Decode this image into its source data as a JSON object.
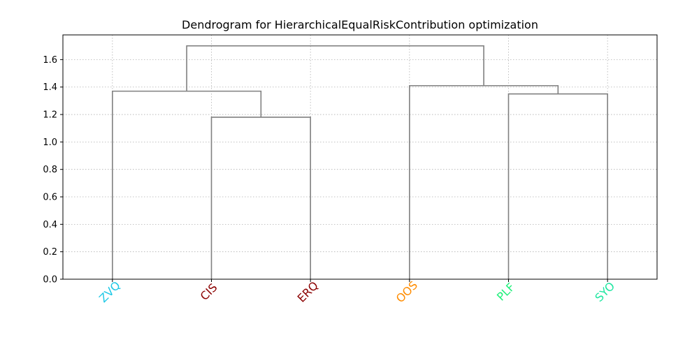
{
  "chart_data": {
    "type": "dendrogram",
    "title": "Dendrogram for HierarchicalEqualRiskContribution optimization",
    "xlabel": "",
    "ylabel": "",
    "ylim": [
      0,
      1.78
    ],
    "y_ticks": [
      0.0,
      0.2,
      0.4,
      0.6,
      0.8,
      1.0,
      1.2,
      1.4,
      1.6
    ],
    "y_tick_labels": [
      "0.0",
      "0.2",
      "0.4",
      "0.6",
      "0.8",
      "1.0",
      "1.2",
      "1.4",
      "1.6"
    ],
    "grid": true,
    "link_color": "#808080",
    "leaves": [
      {
        "label": "ZVQ",
        "color": "#1ec8e6"
      },
      {
        "label": "CIS",
        "color": "#8b0000"
      },
      {
        "label": "ERQ",
        "color": "#8b0000"
      },
      {
        "label": "OOS",
        "color": "#ff8c00"
      },
      {
        "label": "PLF",
        "color": "#1ef07a"
      },
      {
        "label": "SYO",
        "color": "#1ee6a0"
      }
    ],
    "merges": [
      {
        "left": "CIS",
        "right": "ERQ",
        "height": 1.18
      },
      {
        "left": "ZVQ",
        "right": "CIS+ERQ",
        "height": 1.37
      },
      {
        "left": "PLF",
        "right": "SYO",
        "height": 1.35
      },
      {
        "left": "OOS",
        "right": "PLF+SYO",
        "height": 1.41
      },
      {
        "left": "ZVQ+CIS+ERQ",
        "right": "OOS+PLF+SYO",
        "height": 1.7
      }
    ]
  }
}
